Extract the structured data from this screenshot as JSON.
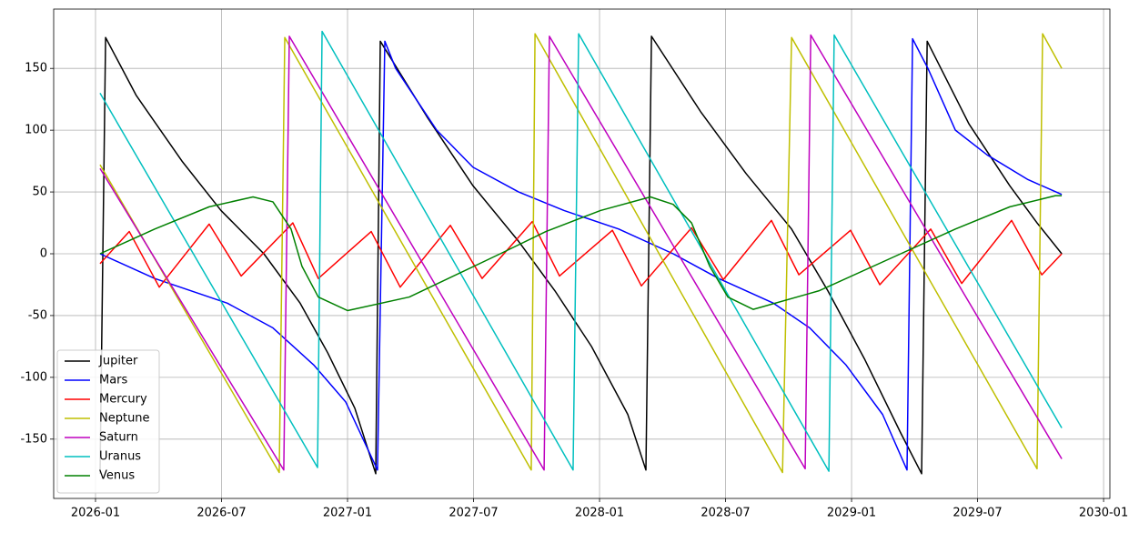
{
  "chart_data": {
    "type": "line",
    "xlim": [
      2025.834,
      2030.025
    ],
    "xticks": [
      {
        "value": 2026.0,
        "label": "2026-01"
      },
      {
        "value": 2026.5,
        "label": "2026-07"
      },
      {
        "value": 2027.0,
        "label": "2027-01"
      },
      {
        "value": 2027.5,
        "label": "2027-07"
      },
      {
        "value": 2028.0,
        "label": "2028-01"
      },
      {
        "value": 2028.5,
        "label": "2028-07"
      },
      {
        "value": 2029.0,
        "label": "2029-01"
      },
      {
        "value": 2029.5,
        "label": "2029-07"
      },
      {
        "value": 2030.0,
        "label": "2030-01"
      }
    ],
    "ylim": [
      -198,
      198
    ],
    "yticks": [
      -150,
      -100,
      -50,
      0,
      50,
      100,
      150
    ],
    "grid": true,
    "legend": "lower left",
    "series": [
      {
        "name": "Jupiter",
        "color": "#000000",
        "x": [
          2026.018,
          2026.04,
          2026.162,
          2026.343,
          2026.498,
          2026.668,
          2026.812,
          2026.921,
          2027.029,
          2027.112,
          2027.13,
          2027.318,
          2027.498,
          2027.679,
          2027.823,
          2027.968,
          2028.112,
          2028.184,
          2028.206,
          2028.401,
          2028.581,
          2028.762,
          2028.906,
          2029.051,
          2029.195,
          2029.278,
          2029.3,
          2029.466,
          2029.628,
          2029.736,
          2029.834
        ],
        "values": [
          -178,
          175,
          128,
          75,
          35,
          0,
          -40,
          -80,
          -125,
          -178,
          172,
          110,
          55,
          10,
          -30,
          -75,
          -130,
          -175,
          176,
          115,
          65,
          20,
          -30,
          -85,
          -145,
          -178,
          172,
          105,
          55,
          25,
          0
        ]
      },
      {
        "name": "Mars",
        "color": "#0000ff",
        "x": [
          2026.018,
          2026.235,
          2026.523,
          2026.704,
          2026.866,
          2026.993,
          2027.119,
          2027.148,
          2027.191,
          2027.354,
          2027.498,
          2027.679,
          2027.859,
          2028.076,
          2028.292,
          2028.473,
          2028.69,
          2028.834,
          2028.978,
          2029.123,
          2029.22,
          2029.242,
          2029.303,
          2029.412,
          2029.538,
          2029.7,
          2029.834
        ],
        "values": [
          0,
          -20,
          -40,
          -60,
          -90,
          -120,
          -175,
          172,
          150,
          100,
          70,
          50,
          35,
          20,
          0,
          -20,
          -40,
          -60,
          -90,
          -130,
          -175,
          174,
          150,
          100,
          80,
          60,
          48
        ]
      },
      {
        "name": "Mercury",
        "color": "#ff0000",
        "x": [
          2026.018,
          2026.134,
          2026.253,
          2026.451,
          2026.578,
          2026.783,
          2026.884,
          2027.094,
          2027.209,
          2027.408,
          2027.534,
          2027.733,
          2027.841,
          2028.051,
          2028.166,
          2028.365,
          2028.491,
          2028.682,
          2028.791,
          2028.996,
          2029.112,
          2029.314,
          2029.437,
          2029.635,
          2029.755,
          2029.834
        ],
        "values": [
          -8,
          18,
          -27,
          24,
          -18,
          25,
          -20,
          18,
          -27,
          23,
          -20,
          26,
          -18,
          19,
          -26,
          21,
          -21,
          27,
          -17,
          19,
          -25,
          20,
          -24,
          27,
          -17,
          0
        ]
      },
      {
        "name": "Neptune",
        "color": "#bfbf00",
        "x": [
          2026.018,
          2026.729,
          2026.751,
          2027.729,
          2027.744,
          2028.726,
          2028.762,
          2029.736,
          2029.758,
          2029.834
        ],
        "values": [
          72,
          -177,
          175,
          -175,
          178,
          -177,
          175,
          -174,
          178,
          150
        ]
      },
      {
        "name": "Saturn",
        "color": "#bf00bf",
        "x": [
          2026.018,
          2026.747,
          2026.769,
          2027.78,
          2027.801,
          2028.816,
          2028.838,
          2029.834
        ],
        "values": [
          69,
          -175,
          176,
          -175,
          176,
          -174,
          177,
          -166
        ]
      },
      {
        "name": "Uranus",
        "color": "#00bfbf",
        "x": [
          2026.018,
          2026.881,
          2026.899,
          2027.895,
          2027.917,
          2028.91,
          2028.931,
          2029.834
        ],
        "values": [
          130,
          -173,
          180,
          -175,
          178,
          -176,
          177,
          -141
        ]
      },
      {
        "name": "Venus",
        "color": "#008000",
        "x": [
          2026.018,
          2026.235,
          2026.451,
          2026.625,
          2026.704,
          2026.776,
          2026.819,
          2026.884,
          2027.0,
          2027.245,
          2027.606,
          2027.787,
          2028.004,
          2028.202,
          2028.292,
          2028.365,
          2028.437,
          2028.509,
          2028.61,
          2028.87,
          2029.195,
          2029.412,
          2029.628,
          2029.809,
          2029.834
        ],
        "values": [
          0,
          20,
          38,
          46,
          42,
          20,
          -10,
          -35,
          -46,
          -35,
          0,
          18,
          35,
          46,
          40,
          25,
          -10,
          -35,
          -45,
          -30,
          0,
          20,
          38,
          47,
          47
        ]
      }
    ]
  }
}
